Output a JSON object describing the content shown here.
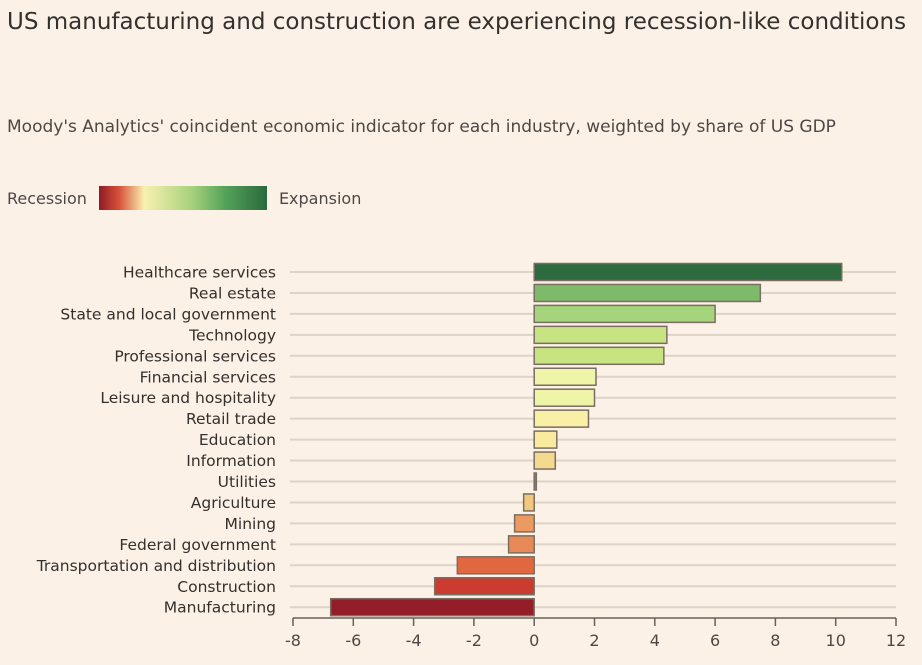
{
  "title": "US manufacturing and construction are experiencing recession-like conditions",
  "subtitle": "Moody's Analytics' coincident economic indicator for each industry, weighted by share of US GDP",
  "legend": {
    "low": "Recession",
    "high": "Expansion"
  },
  "chart_data": {
    "type": "bar",
    "orientation": "horizontal",
    "title": "US manufacturing and construction are experiencing recession-like conditions",
    "subtitle": "Moody's Analytics' coincident economic indicator for each industry, weighted by share of US GDP",
    "xlabel": "",
    "ylabel": "",
    "xlim": [
      -8,
      12
    ],
    "xticks": [
      -8,
      -6,
      -4,
      -2,
      0,
      2,
      4,
      6,
      8,
      10,
      12
    ],
    "grid": true,
    "legend": "color scale top-left: Recession (red) to Expansion (green)",
    "categories": [
      "Healthcare services",
      "Real estate",
      "State and local government",
      "Technology",
      "Professional services",
      "Financial services",
      "Leisure and hospitality",
      "Retail trade",
      "Education",
      "Information",
      "Utilities",
      "Agriculture",
      "Mining",
      "Federal government",
      "Transportation and distribution",
      "Construction",
      "Manufacturing"
    ],
    "values": [
      10.2,
      7.5,
      6.0,
      4.4,
      4.3,
      2.05,
      2.0,
      1.8,
      0.75,
      0.7,
      0.07,
      -0.35,
      -0.65,
      -0.85,
      -2.55,
      -3.3,
      -6.75
    ],
    "colors": [
      "#2d6a3e",
      "#7dbb6a",
      "#a5d47c",
      "#c7e382",
      "#c7e382",
      "#eef5a8",
      "#eef5a8",
      "#f9ef a6",
      "#f9eaa0",
      "#f5d98e",
      "#8a8070",
      "#f3c77e",
      "#eb9a62",
      "#e88a58",
      "#e0673f",
      "#cc3b30",
      "#931e2a"
    ]
  }
}
